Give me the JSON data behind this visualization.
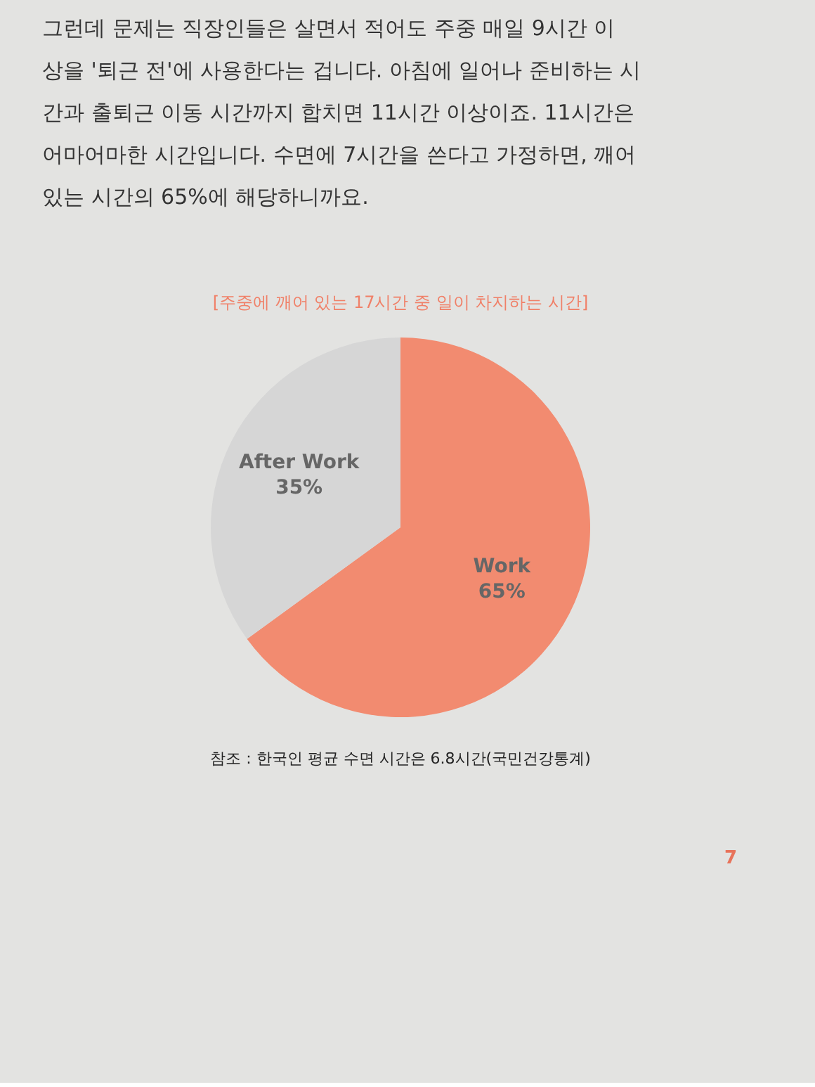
{
  "chart_data": {
    "type": "pie",
    "title": "[주중에 깨어 있는 17시간 중 일이 차지하는 시간]",
    "subtitle": [
      "그런데 문제는 직장인들은 살면서 적어도 주중 매일 9시간 이",
      "상을 '퇴근 전'에 사용한다는 겁니다. 아침에 일어나 준비하는 시",
      "간과 출퇴근 이동 시간까지 합치면 11시간 이상이죠. 11시간은",
      "어마어마한 시간입니다. 수면에 7시간을 쓴다고 가정하면, 깨어",
      "있는 시간의 65%에 해당하니까요."
    ],
    "categories": [
      "Work",
      "After Work"
    ],
    "values": [
      65,
      35
    ],
    "colors": [
      "#f28b70",
      "#d6d6d6"
    ],
    "value_labels": [
      "65%",
      "35%"
    ],
    "annotations": [
      "참조 : 한국인 평균 수면 시간은 6.8시간(국민건강통계)",
      "7"
    ]
  }
}
